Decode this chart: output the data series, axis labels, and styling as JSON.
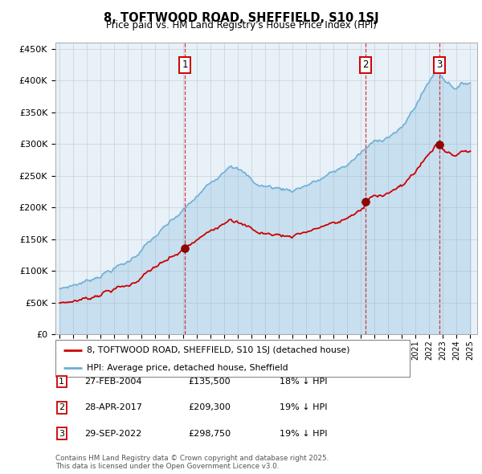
{
  "title": "8, TOFTWOOD ROAD, SHEFFIELD, S10 1SJ",
  "subtitle": "Price paid vs. HM Land Registry's House Price Index (HPI)",
  "legend_house": "8, TOFTWOOD ROAD, SHEFFIELD, S10 1SJ (detached house)",
  "legend_hpi": "HPI: Average price, detached house, Sheffield",
  "footer": "Contains HM Land Registry data © Crown copyright and database right 2025.\nThis data is licensed under the Open Government Licence v3.0.",
  "transactions": [
    {
      "num": 1,
      "date": "27-FEB-2004",
      "price": "£135,500",
      "pct": "18% ↓ HPI",
      "year": 2004.15,
      "price_val": 135500
    },
    {
      "num": 2,
      "date": "28-APR-2017",
      "price": "£209,300",
      "pct": "19% ↓ HPI",
      "year": 2017.32,
      "price_val": 209300
    },
    {
      "num": 3,
      "date": "29-SEP-2022",
      "price": "£298,750",
      "pct": "19% ↓ HPI",
      "year": 2022.74,
      "price_val": 298750
    }
  ],
  "yticks": [
    0,
    50000,
    100000,
    150000,
    200000,
    250000,
    300000,
    350000,
    400000,
    450000
  ],
  "hpi_color": "#6baed6",
  "price_color": "#cc0000",
  "vline_color": "#cc0000",
  "plot_bg": "#e8f0f8",
  "grid_color": "#c0c8d0"
}
